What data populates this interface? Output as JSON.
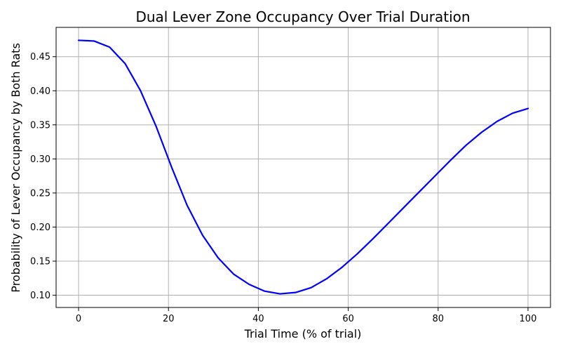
{
  "chart_data": {
    "type": "line",
    "title": "Dual Lever Zone Occupancy Over Trial Duration",
    "xlabel": "Trial Time (% of trial)",
    "ylabel": "Probability of Lever Occupancy by Both Rats",
    "xlim": [
      -5,
      105
    ],
    "ylim": [
      0.082,
      0.493
    ],
    "xticks": [
      0,
      20,
      40,
      60,
      80,
      100
    ],
    "yticks": [
      0.1,
      0.15,
      0.2,
      0.25,
      0.3,
      0.35,
      0.4,
      0.45
    ],
    "xtick_labels": [
      "0",
      "20",
      "40",
      "60",
      "80",
      "100"
    ],
    "ytick_labels": [
      "0.10",
      "0.15",
      "0.20",
      "0.25",
      "0.30",
      "0.35",
      "0.40",
      "0.45"
    ],
    "grid": true,
    "series": [
      {
        "color": "#0000ff",
        "x": [
          0,
          3.45,
          6.9,
          10.34,
          13.79,
          17.24,
          20.69,
          24.14,
          27.59,
          31.03,
          34.48,
          37.93,
          41.38,
          44.83,
          48.28,
          51.72,
          55.17,
          58.62,
          62.07,
          65.52,
          68.97,
          72.41,
          75.86,
          79.31,
          82.76,
          86.21,
          89.66,
          93.1,
          96.55,
          100
        ],
        "y": [
          0.474,
          0.473,
          0.464,
          0.44,
          0.4,
          0.348,
          0.288,
          0.232,
          0.188,
          0.155,
          0.131,
          0.116,
          0.106,
          0.102,
          0.104,
          0.111,
          0.124,
          0.141,
          0.161,
          0.183,
          0.206,
          0.229,
          0.252,
          0.275,
          0.298,
          0.32,
          0.339,
          0.355,
          0.367,
          0.374
        ]
      }
    ]
  }
}
